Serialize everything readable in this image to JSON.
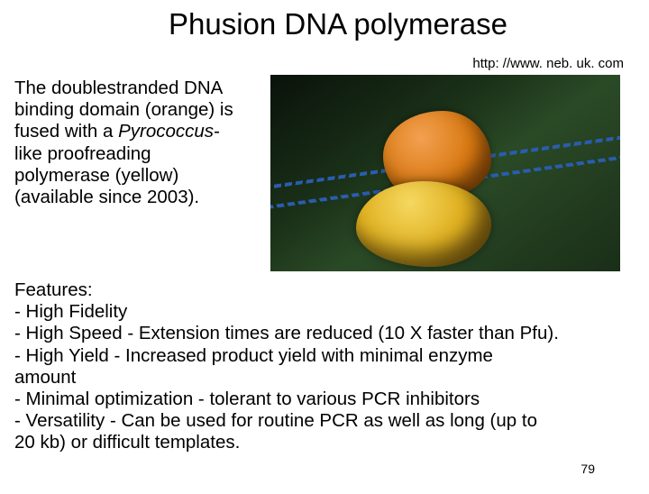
{
  "title": "Phusion DNA polymerase",
  "url": "http: //www. neb. uk. com",
  "description": {
    "line1": "The doublestranded DNA",
    "line2": "binding domain (orange) is",
    "line3a": "fused with a ",
    "line3b": "Pyrococcus",
    "line3c": "-",
    "line4": "like proofreading",
    "line5": "polymerase (yellow)",
    "line6": "(available since 2003)."
  },
  "figure": {
    "background_gradient": [
      "#0a120a",
      "#1a3018",
      "#2a4a26"
    ],
    "orange_blob_color": "#d87810",
    "yellow_blob_color": "#e0b020",
    "dna_color": "#2a5db0"
  },
  "features": {
    "heading": "Features:",
    "l1": "- High Fidelity",
    "l2": "- High Speed - Extension times are reduced (10 X faster than Pfu).",
    "l3": "- High Yield - Increased product yield with minimal enzyme",
    "l4": "amount",
    "l5": "- Minimal optimization - tolerant to various PCR inhibitors",
    "l6": "- Versatility - Can be used for routine PCR as well as long (up to",
    "l7": "20 kb) or difficult templates."
  },
  "page_number": "79"
}
